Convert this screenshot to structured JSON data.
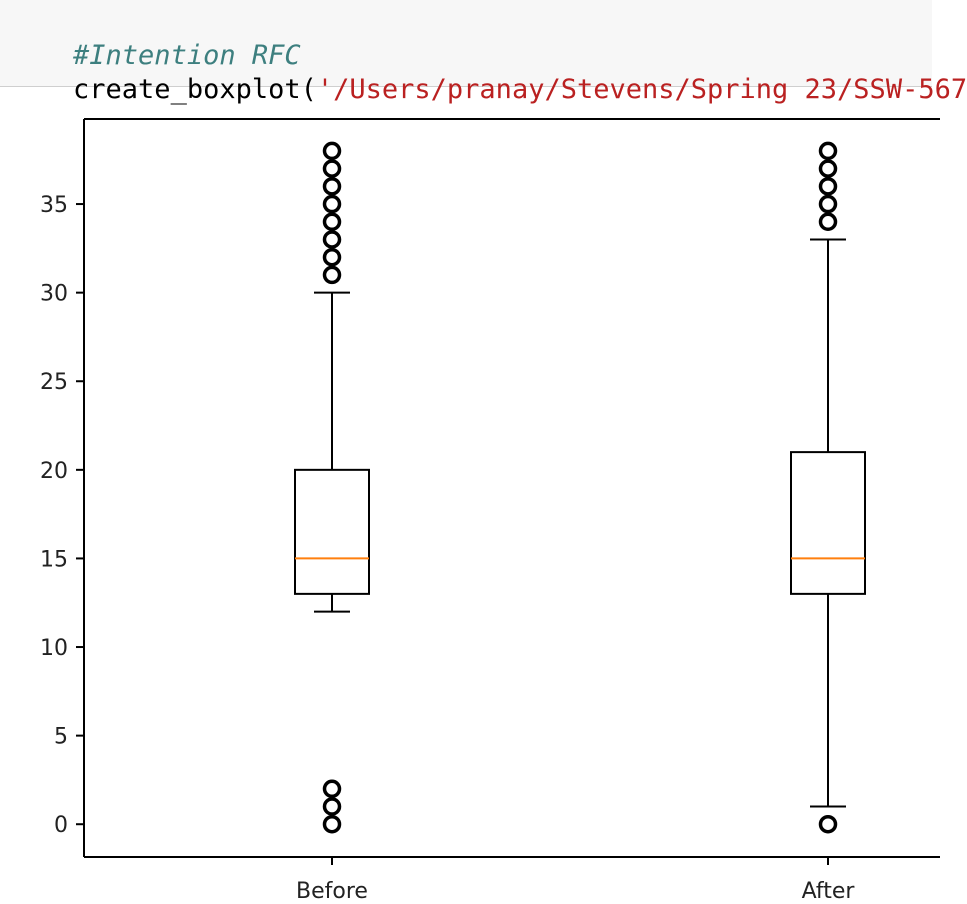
{
  "code_cell": {
    "comment": "#Intention RFC",
    "call_name": "create_boxplot(",
    "call_arg": "'/Users/pranay/Stevens/Spring 23/SSW-567"
  },
  "chart_data": {
    "type": "boxplot",
    "title": "",
    "xlabel": "",
    "ylabel": "",
    "ylim": [
      -1.85,
      39.8
    ],
    "yticks": [
      0,
      5,
      10,
      15,
      20,
      25,
      30,
      35
    ],
    "ytick_labels": [
      "0",
      "5",
      "10",
      "15",
      "20",
      "25",
      "30",
      "35"
    ],
    "grid": false,
    "colors": {
      "box": "#000000",
      "median": "#ff7f0e",
      "flier": "#000000"
    },
    "categories": [
      "Before",
      "After"
    ],
    "series": [
      {
        "whisker_low": 12,
        "q1": 13,
        "median": 15,
        "q3": 20,
        "whisker_high": 30,
        "fliers": [
          0,
          1,
          2,
          31,
          32,
          33,
          34,
          35,
          36,
          37,
          38
        ]
      },
      {
        "whisker_low": 1,
        "q1": 13,
        "median": 15,
        "q3": 21,
        "whisker_high": 33,
        "fliers": [
          0,
          34,
          35,
          36,
          37,
          38
        ]
      }
    ]
  }
}
